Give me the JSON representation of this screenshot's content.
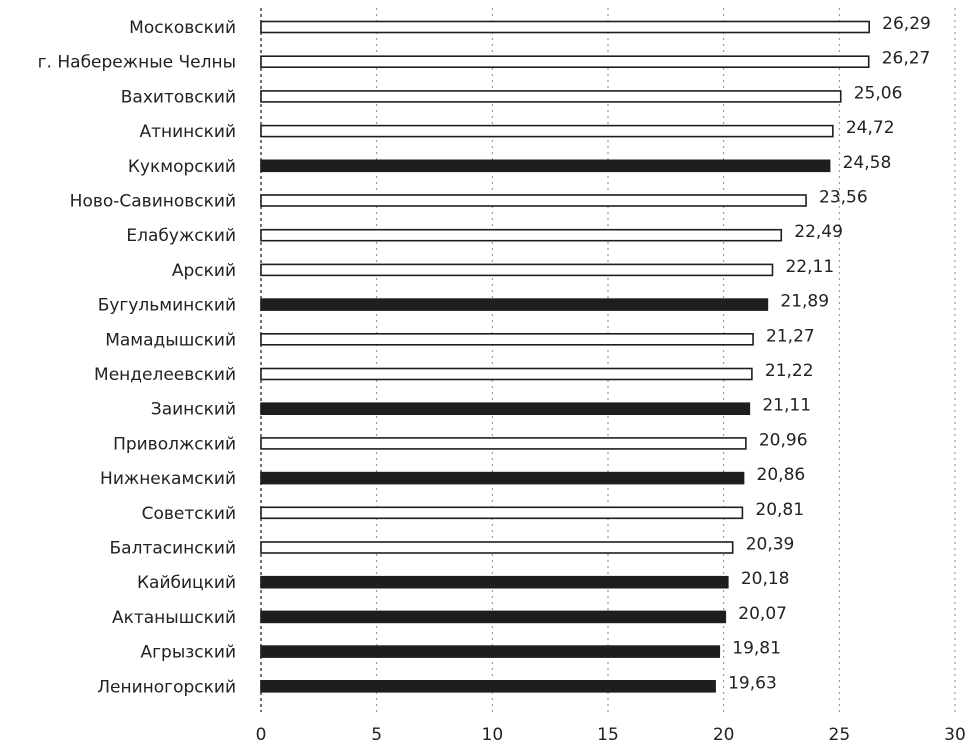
{
  "chart_data": {
    "type": "bar",
    "orientation": "horizontal",
    "categories": [
      "Московский",
      "г. Набережные Челны",
      "Вахитовский",
      "Атнинский",
      "Кукморский",
      "Ново-Савиновский",
      "Елабужский",
      "Арский",
      "Бугульминский",
      "Мамадышский",
      "Менделеевский",
      "Заинский",
      "Приволжский",
      "Нижнекамский",
      "Советский",
      "Балтасинский",
      "Кайбицкий",
      "Актанышский",
      "Агрызский",
      "Лениногорский"
    ],
    "values": [
      26.29,
      26.27,
      25.06,
      24.72,
      24.58,
      23.56,
      22.49,
      22.11,
      21.89,
      21.27,
      21.22,
      21.11,
      20.96,
      20.86,
      20.81,
      20.39,
      20.18,
      20.07,
      19.81,
      19.63
    ],
    "value_labels": [
      "26,29",
      "26,27",
      "25,06",
      "24,72",
      "24,58",
      "23,56",
      "22,49",
      "22,11",
      "21,89",
      "21,27",
      "21,22",
      "21,11",
      "20,96",
      "20,86",
      "20,81",
      "20,39",
      "20,18",
      "20,07",
      "19,81",
      "19,63"
    ],
    "bar_style": [
      "white",
      "white",
      "white",
      "white",
      "black",
      "white",
      "white",
      "white",
      "black",
      "white",
      "white",
      "black",
      "white",
      "black",
      "white",
      "white",
      "black",
      "black",
      "black",
      "black"
    ],
    "xlim": [
      0,
      30
    ],
    "x_ticks": [
      0,
      5,
      10,
      15,
      20,
      25,
      30
    ],
    "x_tick_labels": [
      "0",
      "5",
      "10",
      "15",
      "20",
      "25",
      "30"
    ],
    "grid": true,
    "colors": {
      "white_fill": "#ffffff",
      "black_fill": "#1e1e1e",
      "outline": "#1e1e1e"
    }
  }
}
